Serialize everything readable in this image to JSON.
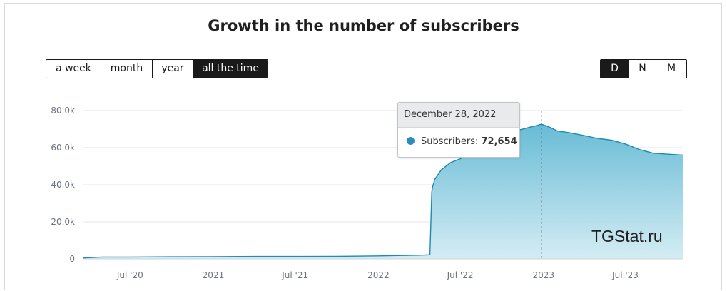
{
  "title": "Growth in the number of subscribers",
  "range_buttons": [
    "a week",
    "month",
    "year",
    "all the time"
  ],
  "range_active": "all the time",
  "granularity_buttons": [
    "D",
    "N",
    "M"
  ],
  "granularity_active": "D",
  "watermark": "TGStat.ru",
  "colors": {
    "line": "#1d8ab3",
    "fill_top": "#5fb8d3",
    "fill_bottom": "#cfeaf2",
    "marker": "#2a8cbd"
  },
  "tooltip": {
    "date": "December 28, 2022",
    "label": "Subscribers:",
    "value": "72,654"
  },
  "chart_data": {
    "type": "area",
    "title": "Growth in the number of subscribers",
    "xlabel": "",
    "ylabel": "",
    "ylim": [
      0,
      80000
    ],
    "y_ticks": [
      0,
      20000,
      40000,
      60000,
      80000
    ],
    "y_tick_labels": [
      "0",
      "20.0k",
      "40.0k",
      "60.0k",
      "80.0k"
    ],
    "x_tick_labels": [
      "Jul '20",
      "2021",
      "Jul '21",
      "2022",
      "Jul '22",
      "2023",
      "Jul '23"
    ],
    "x_tick_dates": [
      "2020-07-01",
      "2021-01-01",
      "2021-07-01",
      "2022-01-01",
      "2022-07-01",
      "2023-01-01",
      "2023-07-01"
    ],
    "xlim": [
      "2020-03-20",
      "2023-11-05"
    ],
    "grid": true,
    "series": [
      {
        "name": "Subscribers",
        "x": [
          "2020-03-20",
          "2020-05-01",
          "2020-07-01",
          "2020-10-01",
          "2021-01-01",
          "2021-04-01",
          "2021-07-01",
          "2021-10-01",
          "2022-01-01",
          "2022-04-01",
          "2022-04-25",
          "2022-04-29",
          "2022-05-01",
          "2022-05-06",
          "2022-05-20",
          "2022-06-10",
          "2022-07-01",
          "2022-08-01",
          "2022-09-01",
          "2022-10-01",
          "2022-11-01",
          "2022-12-01",
          "2022-12-15",
          "2022-12-28",
          "2023-01-15",
          "2023-02-01",
          "2023-03-01",
          "2023-04-01",
          "2023-05-01",
          "2023-06-01",
          "2023-07-01",
          "2023-08-01",
          "2023-09-01",
          "2023-10-01",
          "2023-11-05"
        ],
        "y": [
          500,
          1000,
          1000,
          1100,
          1200,
          1300,
          1300,
          1400,
          1600,
          2000,
          2200,
          36000,
          39000,
          43000,
          48000,
          52000,
          54000,
          58000,
          62000,
          66000,
          69000,
          71000,
          71800,
          72654,
          71000,
          69000,
          68000,
          66500,
          65000,
          64000,
          62000,
          59000,
          57000,
          56500,
          56000
        ]
      }
    ],
    "highlight": {
      "x": "2022-12-28",
      "y": 72654
    }
  }
}
